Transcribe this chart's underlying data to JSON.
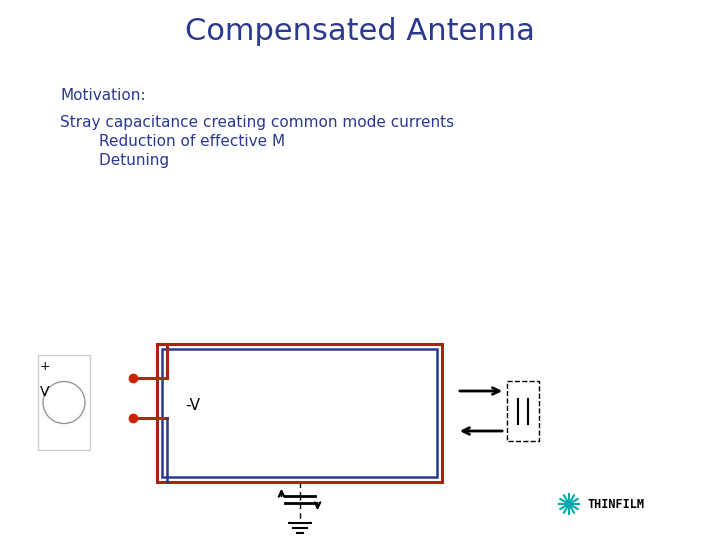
{
  "title": "Compensated Antenna",
  "title_color": "#2B3990",
  "title_fontsize": 22,
  "motivation_text": "Motivation:",
  "bullet1": "Stray capacitance creating common mode currents",
  "bullet2": "        Reduction of effective M",
  "bullet3": "        Detuning",
  "text_color": "#2B3990",
  "text_fontsize": 11,
  "bg_color": "#FFFFFF",
  "red_color": "#CC2200",
  "dark_blue": "#2B3990",
  "dark_red": "#993311",
  "gray_light": "#CCCCCC",
  "black": "#000000",
  "thinfilm_cyan": "#00AAAA"
}
